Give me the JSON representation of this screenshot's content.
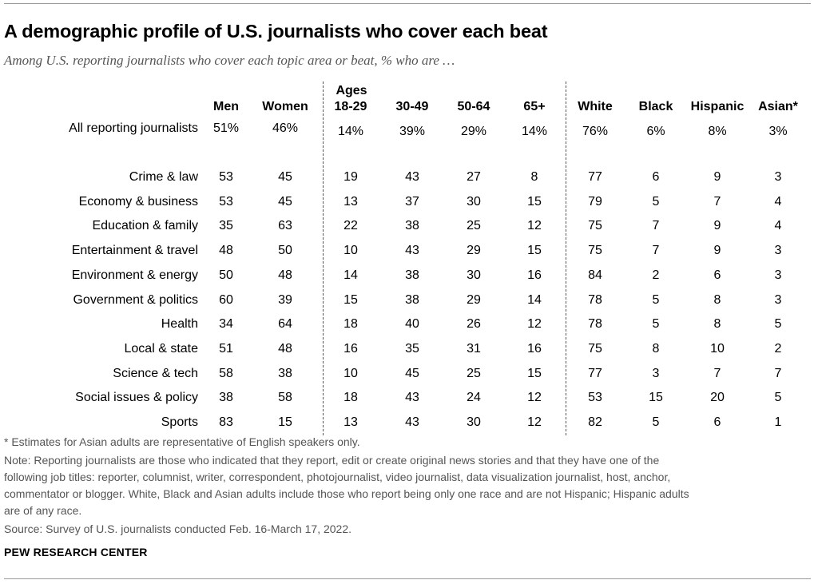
{
  "title": "A demographic profile of U.S. journalists who cover each beat",
  "subtitle": "Among U.S. reporting journalists who cover each topic area or beat, % who are …",
  "header_group_ages": "Ages",
  "columns": [
    "Men",
    "Women",
    "18-29",
    "30-49",
    "50-64",
    "65+",
    "White",
    "Black",
    "Hispanic",
    "Asian*"
  ],
  "all_row": {
    "label": "All reporting journalists",
    "values": [
      "51%",
      "46%",
      "14%",
      "39%",
      "29%",
      "14%",
      "76%",
      "6%",
      "8%",
      "3%"
    ]
  },
  "footnotes": {
    "asian": "* Estimates for Asian adults are representative of English speakers only.",
    "note_lines": [
      "Note: Reporting journalists are those who indicated that they report, edit or create original news stories and that they have one of the",
      "following job titles: reporter, columnist, writer, correspondent, photojournalist, video journalist, data visualization journalist, host, anchor,",
      "commentator or blogger. White, Black and Asian adults include those who report being only one race and are not Hispanic; Hispanic adults",
      "are of any race."
    ],
    "source": "Source: Survey of U.S. journalists conducted Feb. 16-March 17, 2022."
  },
  "brand": "PEW RESEARCH CENTER",
  "chart_data": {
    "type": "table",
    "title": "A demographic profile of U.S. journalists who cover each beat",
    "subtitle": "Among U.S. reporting journalists who cover each topic area or beat, % who are …",
    "column_groups": [
      {
        "name": "",
        "columns": [
          "Men",
          "Women"
        ]
      },
      {
        "name": "Ages",
        "columns": [
          "18-29",
          "30-49",
          "50-64",
          "65+"
        ]
      },
      {
        "name": "",
        "columns": [
          "White",
          "Black",
          "Hispanic",
          "Asian*"
        ]
      }
    ],
    "columns": [
      "Men",
      "Women",
      "18-29",
      "30-49",
      "50-64",
      "65+",
      "White",
      "Black",
      "Hispanic",
      "Asian*"
    ],
    "rows": [
      {
        "label": "Crime & law",
        "values": [
          53,
          45,
          19,
          43,
          27,
          8,
          77,
          6,
          9,
          3
        ]
      },
      {
        "label": "Economy & business",
        "values": [
          53,
          45,
          13,
          37,
          30,
          15,
          79,
          5,
          7,
          4
        ]
      },
      {
        "label": "Education & family",
        "values": [
          35,
          63,
          22,
          38,
          25,
          12,
          75,
          7,
          9,
          4
        ]
      },
      {
        "label": "Entertainment & travel",
        "values": [
          48,
          50,
          10,
          43,
          29,
          15,
          75,
          7,
          9,
          3
        ]
      },
      {
        "label": "Environment & energy",
        "values": [
          50,
          48,
          14,
          38,
          30,
          16,
          84,
          2,
          6,
          3
        ]
      },
      {
        "label": "Government & politics",
        "values": [
          60,
          39,
          15,
          38,
          29,
          14,
          78,
          5,
          8,
          3
        ]
      },
      {
        "label": "Health",
        "values": [
          34,
          64,
          18,
          40,
          26,
          12,
          78,
          5,
          8,
          5
        ]
      },
      {
        "label": "Local & state",
        "values": [
          51,
          48,
          16,
          35,
          31,
          16,
          75,
          8,
          10,
          2
        ]
      },
      {
        "label": "Science & tech",
        "values": [
          58,
          38,
          10,
          45,
          25,
          15,
          77,
          3,
          7,
          7
        ]
      },
      {
        "label": "Social issues & policy",
        "values": [
          38,
          58,
          18,
          43,
          24,
          12,
          53,
          15,
          20,
          5
        ]
      },
      {
        "label": "Sports",
        "values": [
          83,
          15,
          13,
          43,
          30,
          12,
          82,
          5,
          6,
          1
        ]
      }
    ]
  }
}
